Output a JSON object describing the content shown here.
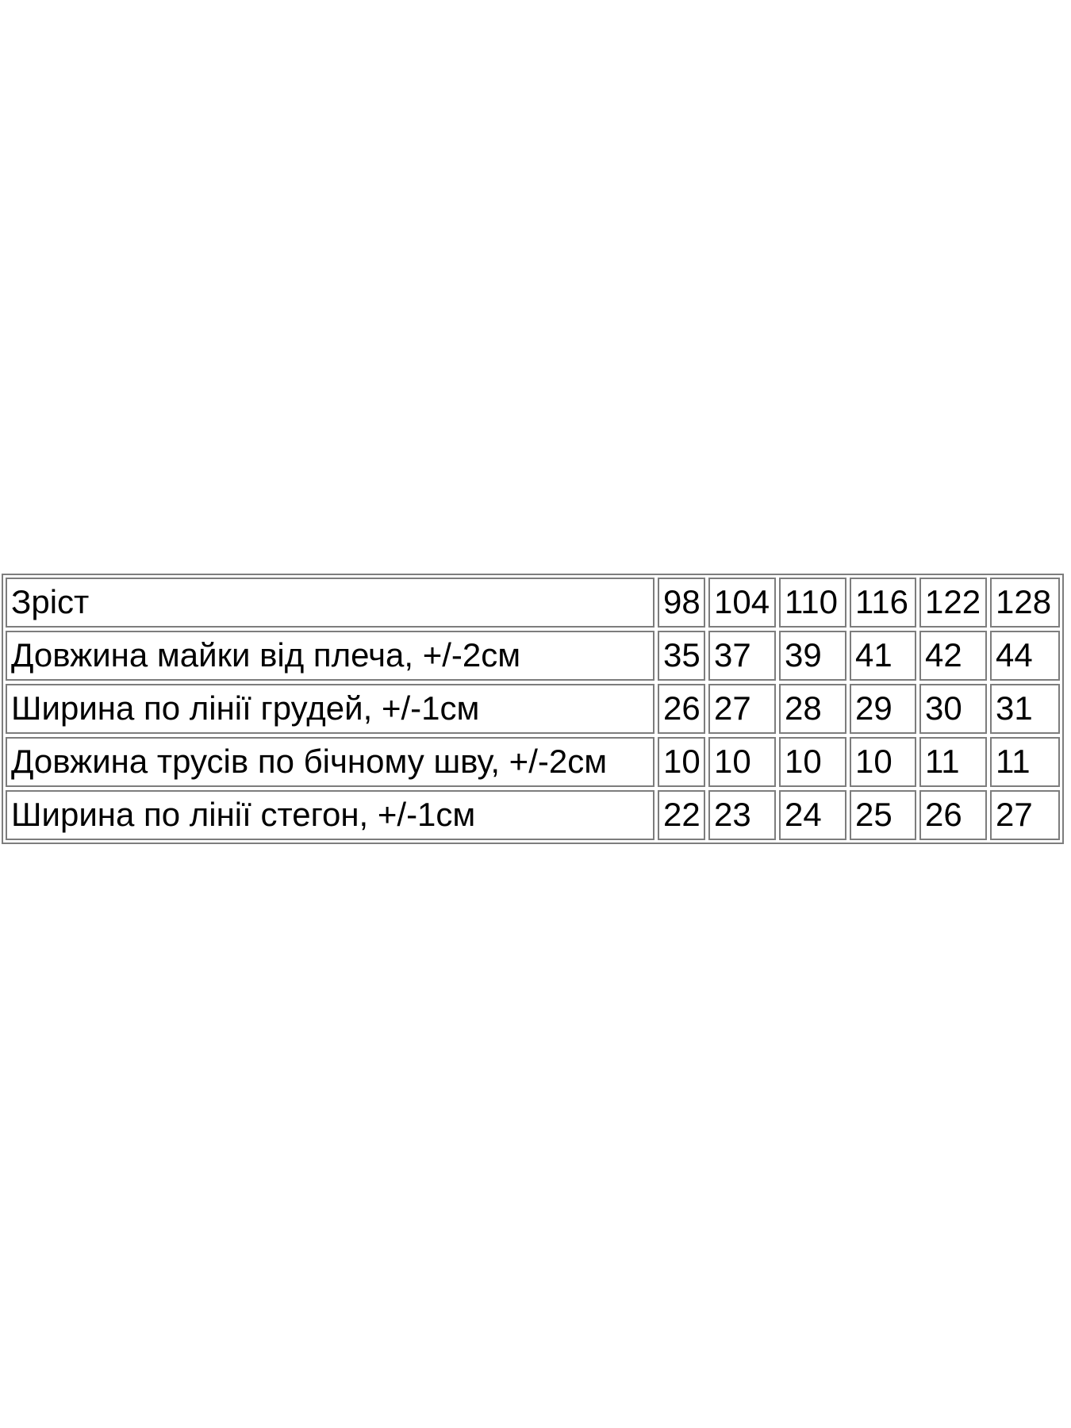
{
  "page": {
    "background_color": "#ffffff"
  },
  "size_chart": {
    "border_color": "#7d7d7d",
    "text_color": "#000000",
    "rows": [
      {
        "label": "Зріст",
        "values": [
          "98",
          "104",
          "110",
          "116",
          "122",
          "128"
        ]
      },
      {
        "label": "Довжина майки від плеча, +/-2см",
        "values": [
          "35",
          "37",
          "39",
          "41",
          "42",
          "44"
        ]
      },
      {
        "label": "Ширина по лінії грудей, +/-1см",
        "values": [
          "26",
          "27",
          "28",
          "29",
          "30",
          "31"
        ]
      },
      {
        "label": "Довжина трусів по бічному шву, +/-2см",
        "values": [
          "10",
          "10",
          "10",
          "10",
          "11",
          "11"
        ]
      },
      {
        "label": "Ширина по лінії стегон, +/-1см",
        "values": [
          "22",
          "23",
          "24",
          "25",
          "26",
          "27"
        ]
      }
    ]
  }
}
